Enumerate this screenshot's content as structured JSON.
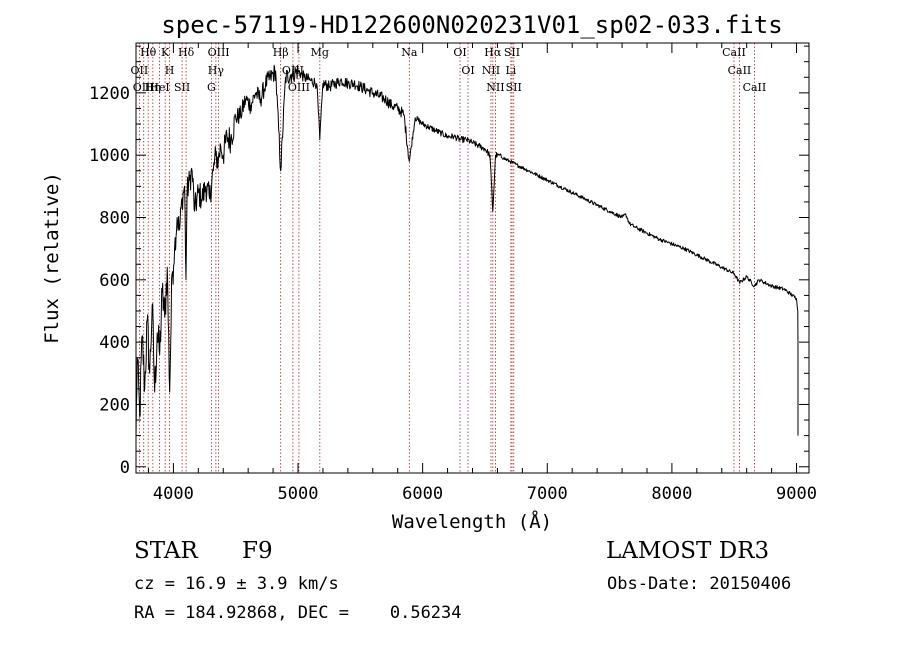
{
  "chart_data": {
    "type": "line",
    "title": "spec-57119-HD122600N020231V01_sp02-033.fits",
    "xlabel": "Wavelength (Å)",
    "ylabel": "Flux (relative)",
    "xlim": [
      3700,
      9100
    ],
    "ylim": [
      -20,
      1360
    ],
    "xticks": [
      4000,
      5000,
      6000,
      7000,
      8000,
      9000
    ],
    "yticks": [
      0,
      200,
      400,
      600,
      800,
      1000,
      1200
    ],
    "x_minor_step": 200,
    "y_minor_step": 50,
    "series": [
      {
        "name": "flux",
        "color": "#000000",
        "anchors": [
          [
            3700,
            90
          ],
          [
            3710,
            350
          ],
          [
            3730,
            160
          ],
          [
            3750,
            420
          ],
          [
            3770,
            250
          ],
          [
            3790,
            470
          ],
          [
            3810,
            300
          ],
          [
            3830,
            520
          ],
          [
            3850,
            240
          ],
          [
            3870,
            430
          ],
          [
            3890,
            360
          ],
          [
            3910,
            560
          ],
          [
            3930,
            480
          ],
          [
            3950,
            640
          ],
          [
            3970,
            240
          ],
          [
            3990,
            620
          ],
          [
            4010,
            700
          ],
          [
            4030,
            800
          ],
          [
            4050,
            760
          ],
          [
            4070,
            860
          ],
          [
            4090,
            900
          ],
          [
            4101,
            600
          ],
          [
            4110,
            880
          ],
          [
            4130,
            920
          ],
          [
            4150,
            950
          ],
          [
            4170,
            820
          ],
          [
            4200,
            880
          ],
          [
            4230,
            860
          ],
          [
            4260,
            900
          ],
          [
            4290,
            860
          ],
          [
            4320,
            950
          ],
          [
            4340,
            1000
          ],
          [
            4360,
            980
          ],
          [
            4380,
            1030
          ],
          [
            4400,
            1000
          ],
          [
            4430,
            1060
          ],
          [
            4460,
            1050
          ],
          [
            4500,
            1120
          ],
          [
            4540,
            1130
          ],
          [
            4580,
            1180
          ],
          [
            4620,
            1160
          ],
          [
            4660,
            1200
          ],
          [
            4700,
            1180
          ],
          [
            4740,
            1230
          ],
          [
            4780,
            1250
          ],
          [
            4820,
            1270
          ],
          [
            4861,
            950
          ],
          [
            4900,
            1250
          ],
          [
            4950,
            1260
          ],
          [
            5000,
            1270
          ],
          [
            5050,
            1250
          ],
          [
            5100,
            1240
          ],
          [
            5150,
            1230
          ],
          [
            5175,
            1050
          ],
          [
            5200,
            1230
          ],
          [
            5250,
            1220
          ],
          [
            5300,
            1230
          ],
          [
            5350,
            1240
          ],
          [
            5400,
            1230
          ],
          [
            5450,
            1230
          ],
          [
            5500,
            1220
          ],
          [
            5550,
            1210
          ],
          [
            5600,
            1200
          ],
          [
            5650,
            1190
          ],
          [
            5700,
            1180
          ],
          [
            5750,
            1160
          ],
          [
            5800,
            1150
          ],
          [
            5850,
            1130
          ],
          [
            5893,
            980
          ],
          [
            5940,
            1120
          ],
          [
            6000,
            1100
          ],
          [
            6050,
            1090
          ],
          [
            6100,
            1080
          ],
          [
            6150,
            1070
          ],
          [
            6200,
            1060
          ],
          [
            6250,
            1060
          ],
          [
            6300,
            1050
          ],
          [
            6350,
            1050
          ],
          [
            6400,
            1040
          ],
          [
            6450,
            1030
          ],
          [
            6500,
            1020
          ],
          [
            6540,
            1000
          ],
          [
            6563,
            820
          ],
          [
            6585,
            1000
          ],
          [
            6620,
            1000
          ],
          [
            6650,
            990
          ],
          [
            6700,
            980
          ],
          [
            6750,
            970
          ],
          [
            6800,
            960
          ],
          [
            6850,
            950
          ],
          [
            6900,
            940
          ],
          [
            6950,
            930
          ],
          [
            7000,
            920
          ],
          [
            7100,
            900
          ],
          [
            7200,
            880
          ],
          [
            7300,
            860
          ],
          [
            7400,
            840
          ],
          [
            7500,
            820
          ],
          [
            7600,
            800
          ],
          [
            7630,
            810
          ],
          [
            7660,
            780
          ],
          [
            7700,
            770
          ],
          [
            7800,
            750
          ],
          [
            7900,
            730
          ],
          [
            8000,
            715
          ],
          [
            8100,
            700
          ],
          [
            8200,
            680
          ],
          [
            8300,
            660
          ],
          [
            8400,
            640
          ],
          [
            8500,
            620
          ],
          [
            8542,
            590
          ],
          [
            8600,
            610
          ],
          [
            8662,
            580
          ],
          [
            8700,
            600
          ],
          [
            8800,
            580
          ],
          [
            8900,
            570
          ],
          [
            9000,
            540
          ],
          [
            9010,
            500
          ],
          [
            9020,
            100
          ]
        ]
      }
    ],
    "lines": [
      {
        "label": "Hθ",
        "x": 3798
      },
      {
        "label": "OII",
        "x": 3727
      },
      {
        "label": "OIII",
        "x": 3762
      },
      {
        "label": "K",
        "x": 3934
      },
      {
        "label": "HeI",
        "x": 3889
      },
      {
        "label": "Hη",
        "x": 3835
      },
      {
        "label": "H",
        "x": 3969
      },
      {
        "label": "Hδ",
        "x": 4102
      },
      {
        "label": "SII",
        "x": 4070
      },
      {
        "label": "OIII",
        "x": 4363
      },
      {
        "label": "Hγ",
        "x": 4341
      },
      {
        "label": "G",
        "x": 4305
      },
      {
        "label": "Hβ",
        "x": 4861
      },
      {
        "label": "OIII",
        "x": 4959
      },
      {
        "label": "OIII",
        "x": 5007
      },
      {
        "label": "Mg",
        "x": 5175
      },
      {
        "label": "Na",
        "x": 5893
      },
      {
        "label": "OI",
        "x": 6300
      },
      {
        "label": "OI",
        "x": 6364
      },
      {
        "label": "Hα",
        "x": 6563
      },
      {
        "label": "NII",
        "x": 6548
      },
      {
        "label": "NII",
        "x": 6584
      },
      {
        "label": "SII",
        "x": 6717
      },
      {
        "label": "Li",
        "x": 6708
      },
      {
        "label": "SII",
        "x": 6731
      },
      {
        "label": "CaII",
        "x": 8498
      },
      {
        "label": "CaII",
        "x": 8542
      },
      {
        "label": "CaII",
        "x": 8662
      }
    ],
    "line_color": "#b22222"
  },
  "info": {
    "object_type": "STAR",
    "subclass": "F9",
    "redshift": "cz = 16.9 ± 3.9 km/s",
    "coords": "RA = 184.92868, DEC =    0.56234",
    "survey": "LAMOST DR3",
    "obs_date": "Obs-Date: 20150406"
  }
}
